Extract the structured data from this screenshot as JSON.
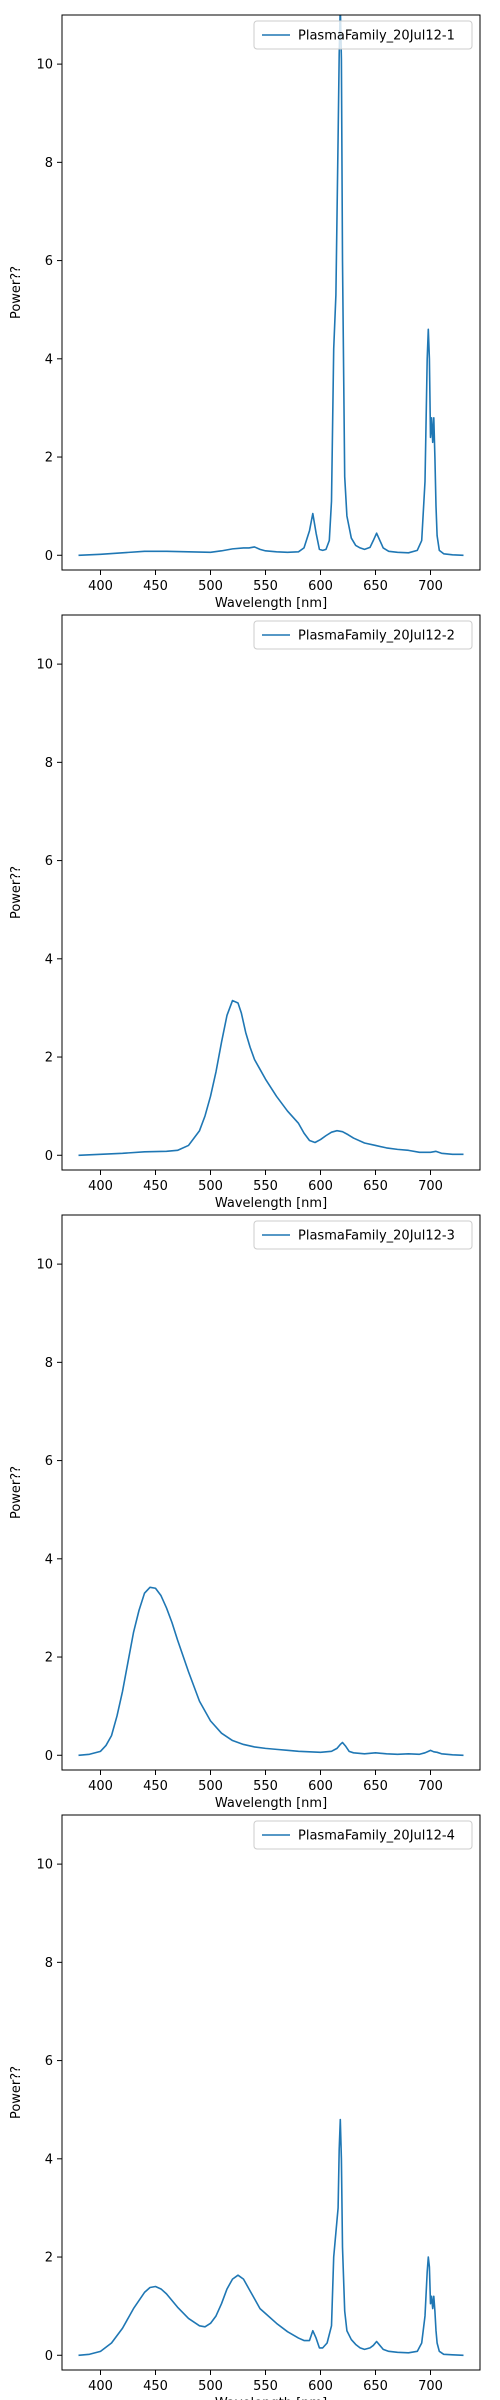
{
  "chart_data": [
    {
      "type": "line",
      "xlabel": "Wavelength [nm]",
      "ylabel": "Power??",
      "xlim": [
        365,
        745
      ],
      "ylim": [
        -0.3,
        11
      ],
      "xticks": [
        400,
        450,
        500,
        550,
        600,
        650,
        700
      ],
      "yticks": [
        0,
        2,
        4,
        6,
        8,
        10
      ],
      "legend_position": "top-right",
      "series": [
        {
          "name": "PlasmaFamily_20Jul12-1",
          "color": "#1f77b4",
          "x": [
            380,
            400,
            420,
            440,
            460,
            480,
            500,
            510,
            520,
            530,
            535,
            540,
            545,
            550,
            560,
            570,
            580,
            585,
            590,
            593,
            596,
            599,
            602,
            605,
            608,
            610,
            612,
            614,
            616,
            617,
            618,
            619,
            620,
            622,
            624,
            628,
            632,
            636,
            640,
            645,
            648,
            651,
            654,
            657,
            662,
            670,
            680,
            688,
            692,
            695,
            697,
            698,
            699,
            700,
            701,
            702,
            703,
            704,
            705,
            706,
            708,
            712,
            720,
            730
          ],
          "y": [
            0.0,
            0.02,
            0.05,
            0.08,
            0.08,
            0.07,
            0.06,
            0.09,
            0.13,
            0.15,
            0.15,
            0.17,
            0.12,
            0.09,
            0.07,
            0.06,
            0.07,
            0.15,
            0.5,
            0.85,
            0.45,
            0.12,
            0.1,
            0.12,
            0.3,
            1.1,
            4.2,
            5.3,
            8.5,
            10.2,
            11.2,
            10.1,
            6.0,
            1.6,
            0.8,
            0.35,
            0.2,
            0.15,
            0.12,
            0.16,
            0.3,
            0.45,
            0.3,
            0.15,
            0.08,
            0.06,
            0.05,
            0.1,
            0.3,
            1.5,
            4.0,
            4.6,
            4.0,
            2.4,
            2.8,
            2.3,
            2.8,
            2.0,
            1.0,
            0.4,
            0.1,
            0.03,
            0.01,
            0.0
          ]
        }
      ]
    },
    {
      "type": "line",
      "xlabel": "Wavelength [nm]",
      "ylabel": "Power??",
      "xlim": [
        365,
        745
      ],
      "ylim": [
        -0.3,
        11
      ],
      "xticks": [
        400,
        450,
        500,
        550,
        600,
        650,
        700
      ],
      "yticks": [
        0,
        2,
        4,
        6,
        8,
        10
      ],
      "legend_position": "top-right",
      "series": [
        {
          "name": "PlasmaFamily_20Jul12-2",
          "color": "#1f77b4",
          "x": [
            380,
            400,
            420,
            440,
            460,
            470,
            480,
            490,
            495,
            500,
            505,
            510,
            515,
            520,
            525,
            528,
            532,
            536,
            540,
            545,
            550,
            560,
            570,
            580,
            585,
            590,
            595,
            600,
            605,
            610,
            615,
            620,
            625,
            630,
            640,
            650,
            660,
            670,
            680,
            690,
            700,
            705,
            710,
            720,
            730
          ],
          "y": [
            0.0,
            0.02,
            0.04,
            0.07,
            0.08,
            0.1,
            0.2,
            0.5,
            0.8,
            1.2,
            1.7,
            2.3,
            2.85,
            3.15,
            3.1,
            2.9,
            2.5,
            2.2,
            1.95,
            1.75,
            1.55,
            1.2,
            0.9,
            0.65,
            0.45,
            0.3,
            0.26,
            0.32,
            0.4,
            0.47,
            0.5,
            0.48,
            0.42,
            0.35,
            0.25,
            0.2,
            0.15,
            0.12,
            0.1,
            0.06,
            0.06,
            0.08,
            0.04,
            0.02,
            0.02
          ]
        }
      ]
    },
    {
      "type": "line",
      "xlabel": "Wavelength [nm]",
      "ylabel": "Power??",
      "xlim": [
        365,
        745
      ],
      "ylim": [
        -0.3,
        11
      ],
      "xticks": [
        400,
        450,
        500,
        550,
        600,
        650,
        700
      ],
      "yticks": [
        0,
        2,
        4,
        6,
        8,
        10
      ],
      "legend_position": "top-right",
      "series": [
        {
          "name": "PlasmaFamily_20Jul12-3",
          "color": "#1f77b4",
          "x": [
            380,
            390,
            400,
            405,
            410,
            415,
            420,
            425,
            430,
            435,
            440,
            445,
            450,
            455,
            460,
            465,
            470,
            480,
            490,
            500,
            510,
            520,
            530,
            540,
            550,
            560,
            570,
            580,
            590,
            600,
            610,
            615,
            618,
            620,
            623,
            626,
            630,
            640,
            650,
            660,
            670,
            680,
            690,
            695,
            698,
            700,
            703,
            706,
            710,
            720,
            730
          ],
          "y": [
            0.0,
            0.02,
            0.08,
            0.2,
            0.4,
            0.8,
            1.3,
            1.9,
            2.5,
            2.95,
            3.3,
            3.42,
            3.4,
            3.25,
            3.0,
            2.7,
            2.35,
            1.7,
            1.1,
            0.7,
            0.45,
            0.3,
            0.22,
            0.17,
            0.14,
            0.12,
            0.1,
            0.08,
            0.07,
            0.06,
            0.08,
            0.14,
            0.22,
            0.26,
            0.18,
            0.08,
            0.05,
            0.03,
            0.05,
            0.03,
            0.02,
            0.03,
            0.02,
            0.05,
            0.08,
            0.1,
            0.07,
            0.06,
            0.03,
            0.01,
            0.0
          ]
        }
      ]
    },
    {
      "type": "line",
      "xlabel": "Wavelength [nm]",
      "ylabel": "Power??",
      "xlim": [
        365,
        745
      ],
      "ylim": [
        -0.3,
        11
      ],
      "xticks": [
        400,
        450,
        500,
        550,
        600,
        650,
        700
      ],
      "yticks": [
        0,
        2,
        4,
        6,
        8,
        10
      ],
      "legend_position": "top-right",
      "series": [
        {
          "name": "PlasmaFamily_20Jul12-4",
          "color": "#1f77b4",
          "x": [
            380,
            390,
            400,
            410,
            420,
            430,
            440,
            445,
            450,
            455,
            460,
            470,
            480,
            490,
            495,
            500,
            505,
            510,
            515,
            520,
            525,
            530,
            535,
            540,
            545,
            550,
            560,
            570,
            580,
            585,
            590,
            593,
            596,
            599,
            602,
            606,
            610,
            612,
            614,
            616,
            617,
            618,
            619,
            620,
            622,
            624,
            628,
            632,
            636,
            640,
            645,
            648,
            651,
            654,
            657,
            662,
            670,
            680,
            688,
            692,
            695,
            697,
            698,
            699,
            700,
            701,
            702,
            703,
            704,
            705,
            706,
            708,
            712,
            720,
            730
          ],
          "y": [
            0.0,
            0.02,
            0.08,
            0.25,
            0.55,
            0.95,
            1.28,
            1.38,
            1.4,
            1.35,
            1.25,
            0.98,
            0.75,
            0.6,
            0.58,
            0.65,
            0.8,
            1.05,
            1.35,
            1.55,
            1.63,
            1.55,
            1.35,
            1.15,
            0.95,
            0.85,
            0.65,
            0.48,
            0.35,
            0.3,
            0.3,
            0.5,
            0.35,
            0.15,
            0.15,
            0.25,
            0.6,
            2.0,
            2.5,
            3.0,
            4.2,
            4.8,
            4.0,
            2.2,
            0.9,
            0.5,
            0.32,
            0.22,
            0.15,
            0.12,
            0.15,
            0.2,
            0.28,
            0.2,
            0.12,
            0.08,
            0.06,
            0.05,
            0.08,
            0.25,
            0.8,
            1.7,
            2.0,
            1.8,
            1.05,
            1.2,
            0.95,
            1.2,
            0.9,
            0.5,
            0.25,
            0.08,
            0.02,
            0.01,
            0.0
          ]
        }
      ]
    }
  ]
}
